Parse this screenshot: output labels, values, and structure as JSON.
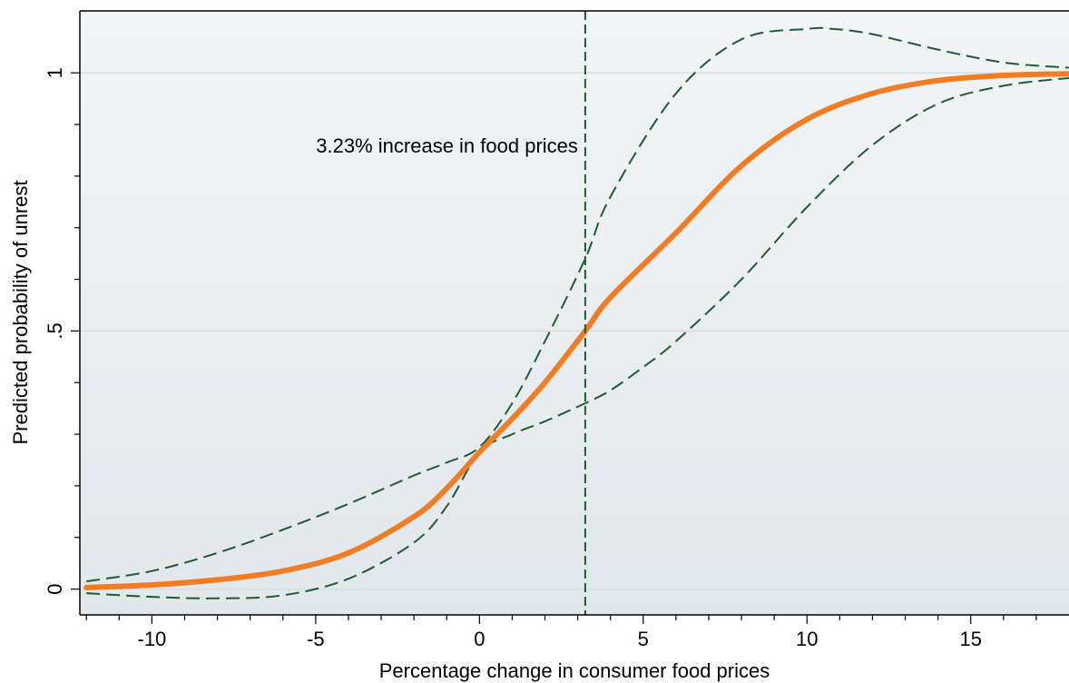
{
  "chart_data": {
    "type": "line",
    "xlabel": "Percentage change in consumer food prices",
    "ylabel": "Predicted probability of unrest",
    "xlim": [
      -12.2,
      18
    ],
    "ylim": [
      -0.05,
      1.12
    ],
    "x_ticks": [
      -10,
      -5,
      0,
      5,
      10,
      15
    ],
    "x_tick_labels": [
      "-10",
      "-5",
      "0",
      "5",
      "10",
      "15"
    ],
    "y_ticks": [
      0,
      0.5,
      1
    ],
    "y_tick_labels": [
      "0",
      ".5",
      "1"
    ],
    "grid": "horizontal",
    "annotations": [
      {
        "text": "3.23% increase in food prices",
        "x": 3.23,
        "y": 0.86
      }
    ],
    "reference_line": {
      "orientation": "vertical",
      "x": 3.23,
      "style": "dashed"
    },
    "series": [
      {
        "role": "predicted",
        "style": "solid",
        "x": [
          -12,
          -10,
          -8,
          -6,
          -4,
          -2,
          -1,
          0,
          1,
          2,
          3.23,
          4,
          6,
          8,
          10,
          12,
          14,
          16,
          18
        ],
        "y": [
          0.003,
          0.008,
          0.018,
          0.035,
          0.07,
          0.14,
          0.195,
          0.265,
          0.33,
          0.4,
          0.5,
          0.565,
          0.69,
          0.82,
          0.91,
          0.96,
          0.985,
          0.995,
          0.998
        ]
      },
      {
        "role": "upper-ci",
        "style": "dashed",
        "x": [
          -12,
          -10,
          -8,
          -6,
          -4,
          -2,
          -1,
          0,
          1,
          2,
          3.23,
          4,
          6,
          8,
          10,
          10.8,
          12,
          14,
          16,
          18
        ],
        "y": [
          0.015,
          0.035,
          0.07,
          0.115,
          0.165,
          0.22,
          0.245,
          0.275,
          0.36,
          0.48,
          0.64,
          0.76,
          0.96,
          1.065,
          1.085,
          1.085,
          1.075,
          1.045,
          1.02,
          1.01
        ]
      },
      {
        "role": "lower-ci",
        "style": "dashed",
        "x": [
          -12,
          -10,
          -8,
          -6,
          -4,
          -2,
          -1,
          0,
          1,
          2,
          3.23,
          4,
          5,
          6,
          8,
          10,
          12,
          14,
          16,
          18
        ],
        "y": [
          -0.008,
          -0.015,
          -0.018,
          -0.012,
          0.02,
          0.09,
          0.16,
          0.265,
          0.3,
          0.325,
          0.36,
          0.385,
          0.43,
          0.48,
          0.6,
          0.74,
          0.86,
          0.94,
          0.975,
          0.99
        ]
      }
    ]
  },
  "colors": {
    "plot_background": "#e8edf0",
    "predicted_line": "#f07d23",
    "ci_line": "#1f5b32",
    "reference_line": "#1f5b32",
    "grid": "#d6dde2"
  }
}
